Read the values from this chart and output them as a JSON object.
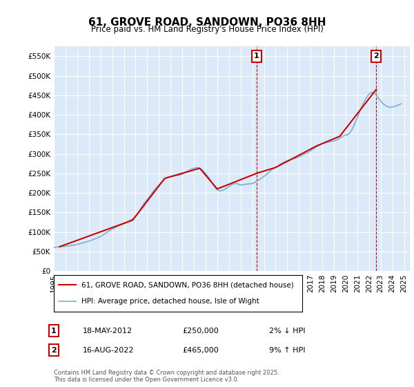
{
  "title": "61, GROVE ROAD, SANDOWN, PO36 8HH",
  "subtitle": "Price paid vs. HM Land Registry's House Price Index (HPI)",
  "ylabel_ticks": [
    "£0",
    "£50K",
    "£100K",
    "£150K",
    "£200K",
    "£250K",
    "£300K",
    "£350K",
    "£400K",
    "£450K",
    "£500K",
    "£550K"
  ],
  "ytick_values": [
    0,
    50000,
    100000,
    150000,
    200000,
    250000,
    300000,
    350000,
    400000,
    450000,
    500000,
    550000
  ],
  "ylim": [
    0,
    575000
  ],
  "xlim_start": 1995.0,
  "xlim_end": 2025.5,
  "xticks": [
    1995,
    1996,
    1997,
    1998,
    1999,
    2000,
    2001,
    2002,
    2003,
    2004,
    2005,
    2006,
    2007,
    2008,
    2009,
    2010,
    2011,
    2012,
    2013,
    2014,
    2015,
    2016,
    2017,
    2018,
    2019,
    2020,
    2021,
    2022,
    2023,
    2024,
    2025
  ],
  "background_color": "#dce9f8",
  "plot_bg_color": "#dce9f8",
  "grid_color": "#ffffff",
  "line1_color": "#cc0000",
  "line2_color": "#7aafd4",
  "marker1_label": "1",
  "marker2_label": "2",
  "marker1_x": 2012.38,
  "marker1_y": 250000,
  "marker2_x": 2022.62,
  "marker2_y": 465000,
  "vline1_x": 2012.38,
  "vline2_x": 2022.62,
  "legend_line1": "61, GROVE ROAD, SANDOWN, PO36 8HH (detached house)",
  "legend_line2": "HPI: Average price, detached house, Isle of Wight",
  "ann1_date": "18-MAY-2012",
  "ann1_price": "£250,000",
  "ann1_hpi": "2% ↓ HPI",
  "ann2_date": "16-AUG-2022",
  "ann2_price": "£465,000",
  "ann2_hpi": "9% ↑ HPI",
  "footer": "Contains HM Land Registry data © Crown copyright and database right 2025.\nThis data is licensed under the Open Government Licence v3.0.",
  "hpi_data": {
    "years": [
      1995.0,
      1995.25,
      1995.5,
      1995.75,
      1996.0,
      1996.25,
      1996.5,
      1996.75,
      1997.0,
      1997.25,
      1997.5,
      1997.75,
      1998.0,
      1998.25,
      1998.5,
      1998.75,
      1999.0,
      1999.25,
      1999.5,
      1999.75,
      2000.0,
      2000.25,
      2000.5,
      2000.75,
      2001.0,
      2001.25,
      2001.5,
      2001.75,
      2002.0,
      2002.25,
      2002.5,
      2002.75,
      2003.0,
      2003.25,
      2003.5,
      2003.75,
      2004.0,
      2004.25,
      2004.5,
      2004.75,
      2005.0,
      2005.25,
      2005.5,
      2005.75,
      2006.0,
      2006.25,
      2006.5,
      2006.75,
      2007.0,
      2007.25,
      2007.5,
      2007.75,
      2008.0,
      2008.25,
      2008.5,
      2008.75,
      2009.0,
      2009.25,
      2009.5,
      2009.75,
      2010.0,
      2010.25,
      2010.5,
      2010.75,
      2011.0,
      2011.25,
      2011.5,
      2011.75,
      2012.0,
      2012.25,
      2012.5,
      2012.75,
      2013.0,
      2013.25,
      2013.5,
      2013.75,
      2014.0,
      2014.25,
      2014.5,
      2014.75,
      2015.0,
      2015.25,
      2015.5,
      2015.75,
      2016.0,
      2016.25,
      2016.5,
      2016.75,
      2017.0,
      2017.25,
      2017.5,
      2017.75,
      2018.0,
      2018.25,
      2018.5,
      2018.75,
      2019.0,
      2019.25,
      2019.5,
      2019.75,
      2020.0,
      2020.25,
      2020.5,
      2020.75,
      2021.0,
      2021.25,
      2021.5,
      2021.75,
      2022.0,
      2022.25,
      2022.5,
      2022.75,
      2023.0,
      2023.25,
      2023.5,
      2023.75,
      2024.0,
      2024.25,
      2024.5,
      2024.75
    ],
    "values": [
      60000,
      61000,
      62000,
      62500,
      63000,
      64000,
      65000,
      66000,
      68000,
      70000,
      72000,
      74000,
      76000,
      79000,
      82000,
      85000,
      88000,
      93000,
      98000,
      103000,
      107000,
      111000,
      115000,
      118000,
      121000,
      125000,
      129000,
      133000,
      140000,
      150000,
      162000,
      174000,
      183000,
      193000,
      203000,
      212000,
      220000,
      228000,
      235000,
      240000,
      242000,
      243000,
      244000,
      245000,
      248000,
      252000,
      256000,
      260000,
      263000,
      265000,
      263000,
      258000,
      250000,
      240000,
      228000,
      216000,
      207000,
      205000,
      207000,
      211000,
      216000,
      221000,
      224000,
      223000,
      220000,
      221000,
      222000,
      223000,
      224000,
      227000,
      232000,
      237000,
      242000,
      248000,
      255000,
      261000,
      265000,
      270000,
      275000,
      279000,
      282000,
      285000,
      287000,
      289000,
      292000,
      296000,
      300000,
      303000,
      308000,
      313000,
      318000,
      322000,
      326000,
      328000,
      330000,
      331000,
      333000,
      336000,
      340000,
      345000,
      348000,
      350000,
      360000,
      375000,
      393000,
      412000,
      428000,
      442000,
      453000,
      458000,
      455000,
      445000,
      435000,
      427000,
      422000,
      419000,
      420000,
      422000,
      425000,
      428000
    ]
  },
  "price_data": {
    "years": [
      1995.5,
      2001.75,
      2004.5,
      2007.5,
      2009.0,
      2012.38,
      2014.0,
      2017.5,
      2019.5,
      2022.62
    ],
    "values": [
      62000,
      130000,
      237000,
      263000,
      210000,
      250000,
      265000,
      320000,
      345000,
      465000
    ]
  }
}
